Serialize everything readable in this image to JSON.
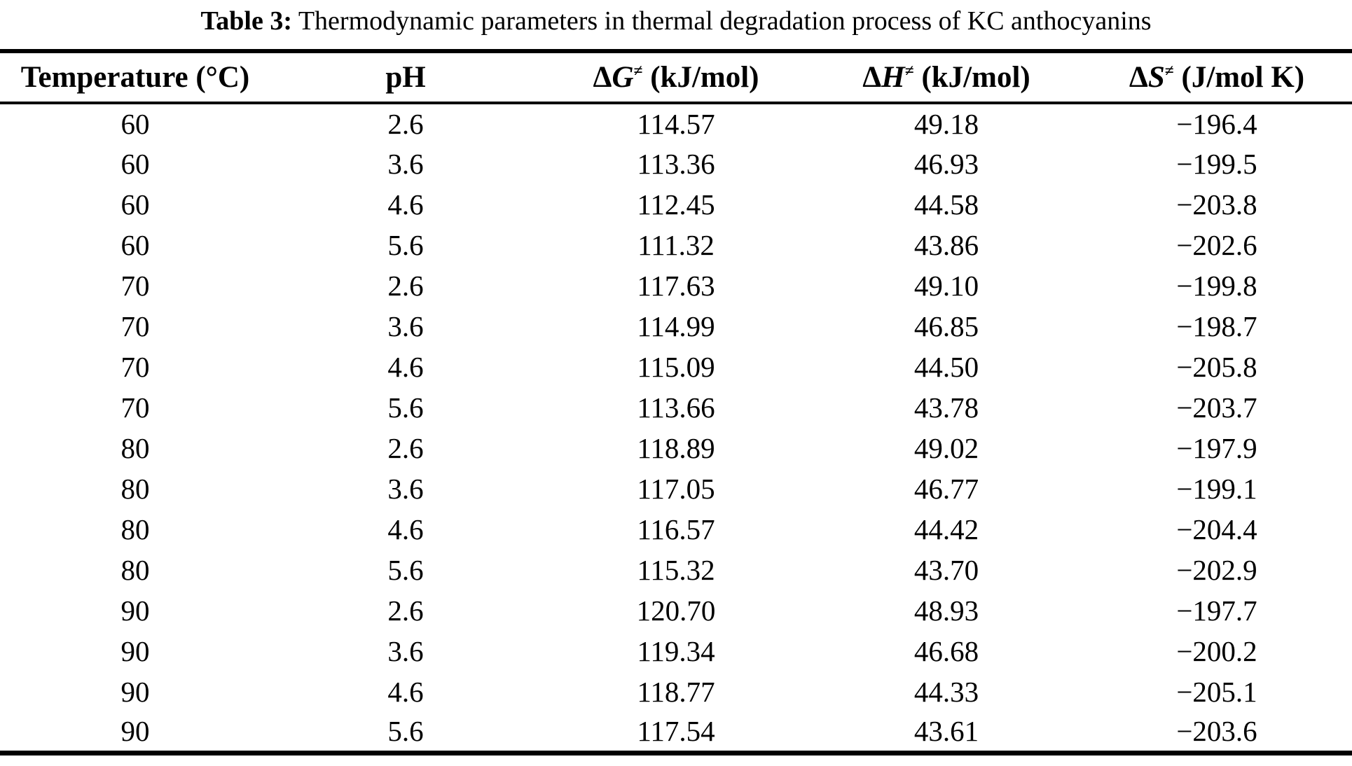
{
  "caption": {
    "label": "Table 3:",
    "text": "Thermodynamic parameters in thermal degradation process of KC anthocyanins"
  },
  "table": {
    "column_keys": [
      "temperature",
      "ph",
      "delta_g",
      "delta_h",
      "delta_s"
    ],
    "columns": [
      {
        "text": "Temperature (°C)",
        "delta": "",
        "letter": "",
        "sup": "",
        "unit": ""
      },
      {
        "text": "pH",
        "delta": "",
        "letter": "",
        "sup": "",
        "unit": ""
      },
      {
        "text": "",
        "delta": "Δ",
        "letter": "G",
        "sup": "≠",
        "unit": " (kJ/mol)"
      },
      {
        "text": "",
        "delta": "Δ",
        "letter": "H",
        "sup": "≠",
        "unit": " (kJ/mol)"
      },
      {
        "text": "",
        "delta": "Δ",
        "letter": "S",
        "sup": "≠",
        "unit": " (J/mol K)"
      }
    ],
    "rows": [
      [
        "60",
        "2.6",
        "114.57",
        "49.18",
        "−196.4"
      ],
      [
        "60",
        "3.6",
        "113.36",
        "46.93",
        "−199.5"
      ],
      [
        "60",
        "4.6",
        "112.45",
        "44.58",
        "−203.8"
      ],
      [
        "60",
        "5.6",
        "111.32",
        "43.86",
        "−202.6"
      ],
      [
        "70",
        "2.6",
        "117.63",
        "49.10",
        "−199.8"
      ],
      [
        "70",
        "3.6",
        "114.99",
        "46.85",
        "−198.7"
      ],
      [
        "70",
        "4.6",
        "115.09",
        "44.50",
        "−205.8"
      ],
      [
        "70",
        "5.6",
        "113.66",
        "43.78",
        "−203.7"
      ],
      [
        "80",
        "2.6",
        "118.89",
        "49.02",
        "−197.9"
      ],
      [
        "80",
        "3.6",
        "117.05",
        "46.77",
        "−199.1"
      ],
      [
        "80",
        "4.6",
        "116.57",
        "44.42",
        "−204.4"
      ],
      [
        "80",
        "5.6",
        "115.32",
        "43.70",
        "−202.9"
      ],
      [
        "90",
        "2.6",
        "120.70",
        "48.93",
        "−197.7"
      ],
      [
        "90",
        "3.6",
        "119.34",
        "46.68",
        "−200.2"
      ],
      [
        "90",
        "4.6",
        "118.77",
        "44.33",
        "−205.1"
      ],
      [
        "90",
        "5.6",
        "117.54",
        "43.61",
        "−203.6"
      ]
    ]
  },
  "colors": {
    "text": "#000000",
    "background": "#ffffff",
    "rule": "#000000"
  }
}
